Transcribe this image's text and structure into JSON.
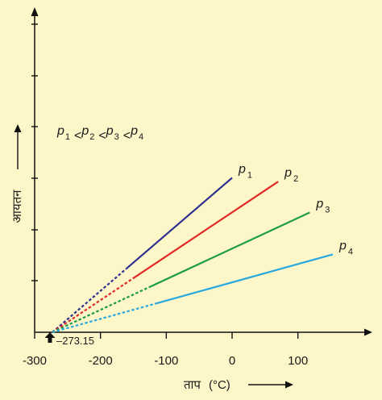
{
  "chart_data": {
    "type": "line",
    "xlabel": "ताप",
    "xunit": "(°C)",
    "ylabel": "आयतन",
    "xlim": [
      -300,
      200
    ],
    "x_ticks": [
      -300,
      -200,
      -100,
      0,
      100
    ],
    "relation": "p1 < p2 < p3 < p4",
    "relation_parts": [
      "p",
      "1",
      "<",
      "p",
      "2",
      "<",
      "p",
      "3",
      "<",
      "p",
      "4"
    ],
    "intercept_label": "–273.15",
    "intercept_x": -273.15,
    "series": [
      {
        "name": "p",
        "sub": "1",
        "color": "#2f3190",
        "slope": 0.8585,
        "x_end": 0,
        "x_solid_start": -160
      },
      {
        "name": "p",
        "sub": "2",
        "color": "#e02a26",
        "slope": 0.6665,
        "x_end": 70,
        "x_solid_start": -150
      },
      {
        "name": "p",
        "sub": "3",
        "color": "#1c9b48",
        "slope": 0.465,
        "x_end": 118,
        "x_solid_start": -125
      },
      {
        "name": "p",
        "sub": "4",
        "color": "#29a8e0",
        "slope": 0.2774,
        "x_end": 153,
        "x_solid_start": -115
      }
    ]
  }
}
